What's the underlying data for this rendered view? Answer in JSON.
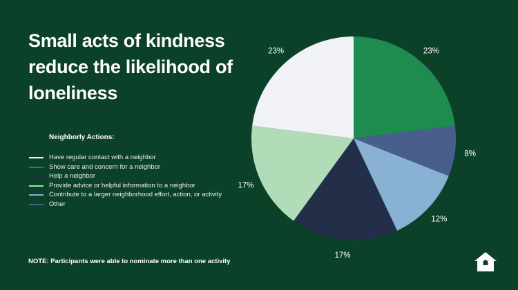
{
  "title": "Small acts of kindness reduce the likelihood of loneliness",
  "legend": {
    "heading": "Neighborly Actions:",
    "items": [
      {
        "label": "Have regular contact with a neighbor",
        "color": "#f0f2f5"
      },
      {
        "label": "Show care and concern for a neighbor",
        "color": "#1e8c4f"
      },
      {
        "label": "Help a neighbor",
        "color": "#232f49"
      },
      {
        "label": "Provide advice or helpful information to a neighbor",
        "color": "#b2dbb7"
      },
      {
        "label": "Contribute to a larger neighborhood effort, action, or activity",
        "color": "#88b1d4"
      },
      {
        "label": "Other",
        "color": "#485f8e"
      }
    ]
  },
  "note": "NOTE: Participants were able to nominate more than one activity",
  "chart_data": {
    "type": "pie",
    "title": "Small acts of kindness reduce the likelihood of loneliness",
    "slices": [
      {
        "label": "Show care and concern for a neighbor",
        "value": 23,
        "display": "23%",
        "color": "#1e8c4f"
      },
      {
        "label": "Other",
        "value": 8,
        "display": "8%",
        "color": "#485f8e"
      },
      {
        "label": "Contribute to a larger neighborhood effort, action, or activity",
        "value": 12,
        "display": "12%",
        "color": "#88b1d4"
      },
      {
        "label": "Help a neighbor",
        "value": 17,
        "display": "17%",
        "color": "#232f49"
      },
      {
        "label": "Provide advice or helpful information to a neighbor",
        "value": 17,
        "display": "17%",
        "color": "#b2dbb7"
      },
      {
        "label": "Have regular contact with a neighbor",
        "value": 23,
        "display": "23%",
        "color": "#f0f2f5"
      }
    ],
    "start": "top",
    "direction": "clockwise"
  },
  "icons": {
    "logo": "home-icon"
  }
}
